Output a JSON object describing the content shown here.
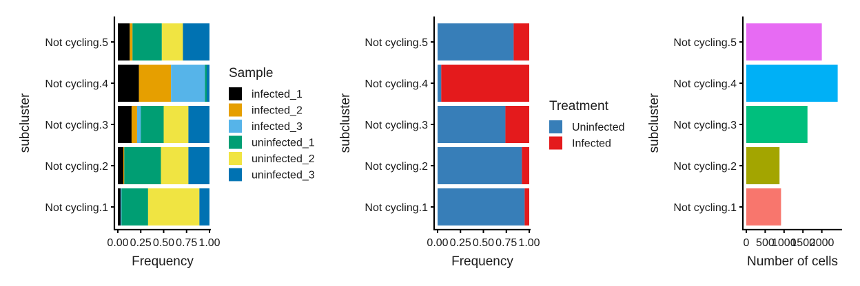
{
  "chart_data": [
    {
      "type": "bar",
      "orientation": "horizontal",
      "stacked": true,
      "categories": [
        "Not cycling.1",
        "Not cycling.2",
        "Not cycling.3",
        "Not cycling.4",
        "Not cycling.5"
      ],
      "xlabel": "Frequency",
      "ylabel": "subcluster",
      "xlim": [
        0,
        1
      ],
      "xticks": [
        "0.00",
        "0.25",
        "0.50",
        "0.75",
        "1.00"
      ],
      "legend": {
        "title": "Sample",
        "position": "right"
      },
      "series": [
        {
          "name": "infected_1",
          "color": "#000000",
          "values": [
            0.03,
            0.06,
            0.15,
            0.23,
            0.13
          ]
        },
        {
          "name": "infected_2",
          "color": "#E69F00",
          "values": [
            0.0,
            0.01,
            0.06,
            0.35,
            0.03
          ]
        },
        {
          "name": "infected_3",
          "color": "#56B4E9",
          "values": [
            0.01,
            0.0,
            0.04,
            0.37,
            0.0
          ]
        },
        {
          "name": "uninfected_1",
          "color": "#009E73",
          "values": [
            0.29,
            0.4,
            0.25,
            0.02,
            0.32
          ]
        },
        {
          "name": "uninfected_2",
          "color": "#F0E442",
          "values": [
            0.56,
            0.3,
            0.27,
            0.0,
            0.23
          ]
        },
        {
          "name": "uninfected_3",
          "color": "#0072B2",
          "values": [
            0.11,
            0.23,
            0.23,
            0.03,
            0.29
          ]
        }
      ]
    },
    {
      "type": "bar",
      "orientation": "horizontal",
      "stacked": true,
      "categories": [
        "Not cycling.1",
        "Not cycling.2",
        "Not cycling.3",
        "Not cycling.4",
        "Not cycling.5"
      ],
      "xlabel": "Frequency",
      "ylabel": "subcluster",
      "xlim": [
        0,
        1
      ],
      "xticks": [
        "0.00",
        "0.25",
        "0.50",
        "0.75",
        "1.00"
      ],
      "legend": {
        "title": "Treatment",
        "position": "right"
      },
      "series": [
        {
          "name": "Uninfected",
          "color": "#377EB8",
          "values": [
            0.95,
            0.92,
            0.74,
            0.04,
            0.83
          ]
        },
        {
          "name": "Infected",
          "color": "#E41A1C",
          "values": [
            0.05,
            0.08,
            0.26,
            0.96,
            0.17
          ]
        }
      ]
    },
    {
      "type": "bar",
      "orientation": "horizontal",
      "categories": [
        "Not cycling.1",
        "Not cycling.2",
        "Not cycling.3",
        "Not cycling.4",
        "Not cycling.5"
      ],
      "xlabel": "Number of cells",
      "ylabel": "subcluster",
      "xlim": [
        0,
        2500
      ],
      "xticks": [
        "0",
        "500",
        "1000",
        "1500",
        "2000"
      ],
      "values": [
        920,
        880,
        1620,
        2420,
        2000
      ],
      "colors": [
        "#F8766D",
        "#A3A500",
        "#00BF7D",
        "#00B0F6",
        "#E76BF3"
      ]
    }
  ]
}
